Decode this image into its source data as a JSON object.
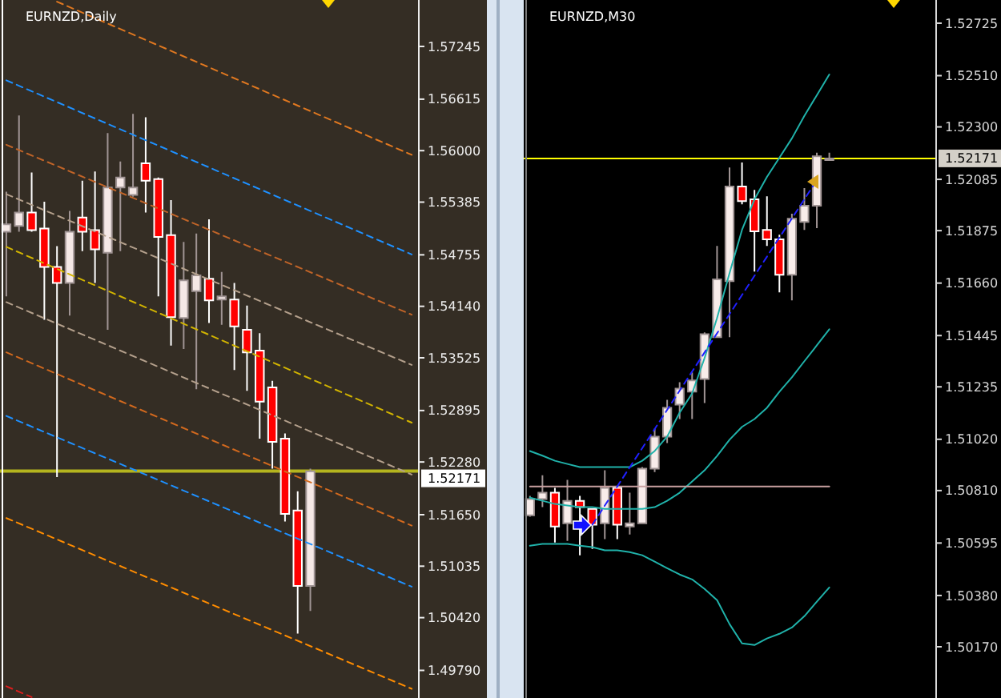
{
  "chart_data": [
    {
      "type": "candlestick",
      "title": "EURNZD,Daily",
      "categories": [
        null,
        null,
        null,
        null,
        null,
        null,
        null,
        null,
        null,
        null,
        null,
        null,
        null,
        null,
        null,
        null,
        null,
        null,
        null,
        null,
        null,
        null,
        null,
        null,
        null,
        null,
        null,
        null,
        null,
        null,
        null,
        null,
        null
      ],
      "ohlc": [
        [
          1.5503,
          1.5551,
          1.5426,
          1.5512
        ],
        [
          1.551,
          1.5642,
          1.5503,
          1.5526
        ],
        [
          1.5526,
          1.5574,
          1.5503,
          1.5505
        ],
        [
          1.5507,
          1.5539,
          1.5398,
          1.5461
        ],
        [
          1.5461,
          1.5486,
          1.521,
          1.5442
        ],
        [
          1.5442,
          1.5528,
          1.5403,
          1.5503
        ],
        [
          1.552,
          1.5564,
          1.548,
          1.5503
        ],
        [
          1.5505,
          1.5575,
          1.5442,
          1.5482
        ],
        [
          1.5478,
          1.5621,
          1.5386,
          1.5556
        ],
        [
          1.5556,
          1.5587,
          1.548,
          1.5568
        ],
        [
          1.5547,
          1.5644,
          1.5545,
          1.5556
        ],
        [
          1.5585,
          1.564,
          1.5526,
          1.5564
        ],
        [
          1.5566,
          1.5568,
          1.5426,
          1.5497
        ],
        [
          1.5499,
          1.5541,
          1.5367,
          1.5401
        ],
        [
          1.54,
          1.5491,
          1.5363,
          1.5445
        ],
        [
          1.5432,
          1.5501,
          1.5315,
          1.5451
        ],
        [
          1.5447,
          1.5518,
          1.5394,
          1.5421
        ],
        [
          1.5422,
          1.5455,
          1.5392,
          1.5426
        ],
        [
          1.5422,
          1.5442,
          1.5338,
          1.539
        ],
        [
          1.5386,
          1.5415,
          1.5313,
          1.5359
        ],
        [
          1.5361,
          1.5382,
          1.5256,
          1.53
        ],
        [
          1.5317,
          1.5325,
          1.522,
          1.5252
        ],
        [
          1.5256,
          1.5262,
          1.5157,
          1.5166
        ],
        [
          1.517,
          1.5193,
          1.5023,
          1.508
        ],
        [
          1.508,
          1.522,
          1.505,
          1.5217
        ],
        null,
        null,
        null,
        null,
        null,
        null,
        null,
        null
      ],
      "colors": [
        "#f5e8e6",
        "#f5e8e6",
        "#ff0000",
        "#ff0000",
        "#ff0000",
        "#f5e8e6",
        "#ff0000",
        "#ff0000",
        "#f5e8e6",
        "#f5e8e6",
        "#f5e8e6",
        "#ff0000",
        "#ff0000",
        "#ff0000",
        "#f5e8e6",
        "#f5e8e6",
        "#ff0000",
        "#f5e8e6",
        "#ff0000",
        "#ff0000",
        "#ff0000",
        "#ff0000",
        "#ff0000",
        "#ff0000",
        "#f5e8e6",
        null,
        null,
        null,
        null,
        null,
        null,
        null,
        null
      ],
      "ylim": [
        1.4946,
        1.578
      ],
      "yticks": [
        1.57245,
        1.56615,
        {
          "value": 1.56,
          "label": "1.56000"
        },
        1.55385,
        1.54755,
        {
          "value": 1.5414,
          "label": "1.54140"
        },
        1.53525,
        1.52895,
        {
          "value": 1.5228,
          "label": "1.52280"
        },
        {
          "value": 1.5165,
          "label": "1.51650"
        },
        1.51035,
        {
          "value": 1.5042,
          "label": "1.50420"
        },
        {
          "value": 1.4979,
          "label": "1.49790"
        }
      ],
      "tick_labels": "y",
      "series": [
        {
          "type": "line",
          "color": "#e07820",
          "line_style": "dashed",
          "values": [
            null,
            null,
            null,
            null,
            1.5778,
            null,
            null,
            null,
            null,
            null,
            null,
            null,
            null,
            null,
            null,
            null,
            null,
            null,
            null,
            null,
            null,
            null,
            null,
            null,
            null,
            null,
            null,
            null,
            null,
            null,
            null,
            null,
            1.5595
          ]
        },
        {
          "type": "line",
          "color": "#1e90ff",
          "line_style": "dashed",
          "values": [
            1.5684,
            null,
            null,
            null,
            null,
            null,
            null,
            null,
            null,
            null,
            null,
            null,
            null,
            null,
            null,
            null,
            null,
            null,
            null,
            null,
            null,
            null,
            null,
            null,
            null,
            null,
            null,
            null,
            null,
            null,
            null,
            null,
            1.5476
          ]
        },
        {
          "type": "line",
          "color": "#c06428",
          "line_style": "dashed",
          "values": [
            1.5607,
            null,
            null,
            null,
            null,
            null,
            null,
            null,
            null,
            null,
            null,
            null,
            null,
            null,
            null,
            null,
            null,
            null,
            null,
            null,
            null,
            null,
            null,
            null,
            null,
            null,
            null,
            null,
            null,
            null,
            null,
            null,
            1.5404
          ]
        },
        {
          "type": "line",
          "color": "#b4a08c",
          "line_style": "dashed",
          "values": [
            1.5548,
            null,
            null,
            null,
            null,
            null,
            null,
            null,
            null,
            null,
            null,
            null,
            null,
            null,
            null,
            null,
            null,
            null,
            null,
            null,
            null,
            null,
            null,
            null,
            null,
            null,
            null,
            null,
            null,
            null,
            null,
            null,
            1.5344
          ]
        },
        {
          "type": "line",
          "color": "#d2b400",
          "line_style": "dashed",
          "values": [
            1.5485,
            null,
            null,
            null,
            null,
            null,
            null,
            null,
            null,
            null,
            null,
            null,
            null,
            null,
            null,
            null,
            null,
            null,
            null,
            null,
            null,
            null,
            null,
            null,
            null,
            null,
            null,
            null,
            null,
            null,
            null,
            null,
            1.5275
          ]
        },
        {
          "type": "line",
          "color": "#b4a08c",
          "line_style": "dashed",
          "values": [
            1.5419,
            null,
            null,
            null,
            null,
            null,
            null,
            null,
            null,
            null,
            null,
            null,
            null,
            null,
            null,
            null,
            null,
            null,
            null,
            null,
            null,
            null,
            null,
            null,
            null,
            null,
            null,
            null,
            null,
            null,
            null,
            null,
            1.5213
          ]
        },
        {
          "type": "line",
          "color": "#d2691e",
          "line_style": "dashed",
          "values": [
            1.5359,
            null,
            null,
            null,
            null,
            null,
            null,
            null,
            null,
            null,
            null,
            null,
            null,
            null,
            null,
            null,
            null,
            null,
            null,
            null,
            null,
            null,
            null,
            null,
            null,
            null,
            null,
            null,
            null,
            null,
            null,
            null,
            1.5152
          ]
        },
        {
          "type": "line",
          "color": "#1e90ff",
          "line_style": "dashed",
          "values": [
            1.5283,
            null,
            null,
            null,
            null,
            null,
            null,
            null,
            null,
            null,
            null,
            null,
            null,
            null,
            null,
            null,
            null,
            null,
            null,
            null,
            null,
            null,
            null,
            null,
            null,
            null,
            null,
            null,
            null,
            null,
            null,
            null,
            1.5079
          ]
        },
        {
          "type": "line",
          "color": "#ff8c00",
          "line_style": "dashed",
          "values": [
            1.5161,
            null,
            null,
            null,
            null,
            null,
            null,
            null,
            null,
            null,
            null,
            null,
            null,
            null,
            null,
            null,
            null,
            null,
            null,
            null,
            null,
            null,
            null,
            null,
            null,
            null,
            null,
            null,
            null,
            null,
            null,
            null,
            1.4957
          ]
        },
        {
          "type": "line",
          "color": "#dc1e1e",
          "line_style": "dashed",
          "values": [
            1.496,
            null,
            1.4947,
            null,
            null,
            null,
            null,
            null,
            null,
            null,
            null,
            null,
            null,
            null,
            null,
            null,
            null,
            null,
            null,
            null,
            null,
            null,
            null,
            null,
            null,
            null,
            null,
            null,
            null,
            null,
            null,
            null,
            null
          ]
        }
      ],
      "ref_lines": [
        {
          "axis": "y",
          "value": 1.52171,
          "label": "1.52171",
          "color": "#b4b41e"
        }
      ]
    },
    {
      "type": "candlestick",
      "title": "EURNZD,M30",
      "categories": [
        null,
        null,
        null,
        null,
        null,
        null,
        null,
        null,
        null,
        null,
        null,
        null,
        null,
        null,
        null,
        null,
        null,
        null,
        null,
        null,
        null,
        null,
        null,
        null,
        null,
        null,
        null,
        null,
        null,
        null,
        null,
        null,
        null
      ],
      "ohlc": [
        [
          1.50709,
          1.50788,
          1.50703,
          1.50775
        ],
        [
          1.50775,
          1.50873,
          1.50742,
          1.50801
        ],
        [
          1.50801,
          1.50821,
          1.50597,
          1.50663
        ],
        [
          1.50676,
          1.50854,
          1.50604,
          1.50768
        ],
        [
          1.50768,
          1.50788,
          1.50545,
          1.50742
        ],
        [
          1.50735,
          1.50735,
          1.50571,
          1.5067
        ],
        [
          1.50676,
          1.50893,
          1.50611,
          1.50821
        ],
        [
          1.50821,
          1.50827,
          1.50611,
          1.5067
        ],
        [
          1.50663,
          1.50801,
          1.5063,
          1.50676
        ],
        [
          1.50676,
          1.50906,
          1.50676,
          1.509
        ],
        [
          1.509,
          1.51064,
          1.50886,
          1.51031
        ],
        [
          1.51031,
          1.51182,
          1.51005,
          1.51149
        ],
        [
          1.51162,
          1.51254,
          1.51103,
          1.51228
        ],
        [
          1.51215,
          1.51294,
          1.51103,
          1.51261
        ],
        [
          1.51267,
          1.51458,
          1.51169,
          1.51451
        ],
        [
          1.51438,
          1.51812,
          1.51438,
          1.51675
        ],
        [
          1.51668,
          1.52134,
          1.51438,
          1.52056
        ],
        [
          1.52056,
          1.52154,
          1.51983,
          1.51996
        ],
        [
          1.52003,
          1.52042,
          1.51707,
          1.51872
        ],
        [
          1.51878,
          1.52016,
          1.51812,
          1.51839
        ],
        [
          1.51839,
          1.51858,
          1.51622,
          1.51694
        ],
        [
          1.51694,
          1.51944,
          1.51589,
          1.51924
        ],
        [
          1.51911,
          1.52049,
          1.51878,
          1.51977
        ],
        [
          1.51977,
          1.52194,
          1.51885,
          1.5218
        ],
        [
          1.52171,
          1.52194,
          1.52171,
          1.52171
        ],
        null,
        null,
        null,
        null,
        null,
        null,
        null,
        null
      ],
      "colors": [
        "#f8ecea",
        "#f8ecea",
        "#ff0000",
        "#f8ecea",
        "#ff0000",
        "#ff0000",
        "#f8ecea",
        "#ff0000",
        "#f8ecea",
        "#f8ecea",
        "#f8ecea",
        "#f8ecea",
        "#f8ecea",
        "#f8ecea",
        "#f8ecea",
        "#f8ecea",
        "#f8ecea",
        "#ff0000",
        "#ff0000",
        "#ff0000",
        "#ff0000",
        "#f8ecea",
        "#f8ecea",
        "#f8ecea",
        "#f8ecea",
        null,
        null,
        null,
        null,
        null,
        null,
        null,
        null
      ],
      "ylim": [
        1.4996,
        1.5282
      ],
      "yticks": [
        1.52725,
        {
          "value": 1.5251,
          "label": "1.52510"
        },
        {
          "value": 1.523,
          "label": "1.52300"
        },
        1.52085,
        1.51875,
        {
          "value": 1.5166,
          "label": "1.51660"
        },
        1.51445,
        1.51235,
        {
          "value": 1.5102,
          "label": "1.51020"
        },
        {
          "value": 1.5081,
          "label": "1.50810"
        },
        1.50595,
        {
          "value": 1.5038,
          "label": "1.50380"
        },
        {
          "value": 1.5017,
          "label": "1.50170"
        }
      ],
      "tick_labels": "y",
      "series": [
        {
          "type": "line",
          "color": "#20b2aa",
          "line_style": "solid",
          "values": [
            1.50972,
            1.50953,
            1.50932,
            1.50919,
            1.50906,
            1.50906,
            1.50906,
            1.50906,
            1.50906,
            1.50932,
            1.50972,
            1.51031,
            1.51129,
            1.51208,
            1.51353,
            1.51517,
            1.51701,
            1.51878,
            1.52003,
            1.52095,
            1.52174,
            1.52253,
            1.52345,
            1.5243,
            1.52515,
            null,
            null,
            null,
            null,
            null,
            null,
            null,
            null
          ]
        },
        {
          "type": "line",
          "color": "#20b2aa",
          "line_style": "solid",
          "values": [
            1.50781,
            1.50768,
            1.50755,
            1.50749,
            1.50742,
            1.50742,
            1.50735,
            1.50735,
            1.50735,
            1.50735,
            1.50742,
            1.50768,
            1.50801,
            1.50847,
            1.50893,
            1.50952,
            1.51018,
            1.51071,
            1.51103,
            1.51149,
            1.51215,
            1.51274,
            1.5134,
            1.51405,
            1.51471,
            null,
            null,
            null,
            null,
            null,
            null,
            null,
            null
          ]
        },
        {
          "type": "line",
          "color": "#20b2aa",
          "line_style": "solid",
          "values": [
            1.50584,
            1.50591,
            1.50591,
            1.50591,
            1.50584,
            1.50578,
            1.50565,
            1.50565,
            1.50558,
            1.50545,
            1.50519,
            1.50492,
            1.50466,
            1.50446,
            1.50407,
            1.50361,
            1.50263,
            1.50184,
            1.50177,
            1.50204,
            1.50223,
            1.50249,
            1.50295,
            1.50355,
            1.50413,
            null,
            null,
            null,
            null,
            null,
            null,
            null,
            null
          ]
        },
        {
          "type": "line",
          "color": "#c8a0a0",
          "line_style": "solid",
          "values": [
            1.50827,
            null,
            null,
            null,
            null,
            null,
            null,
            null,
            null,
            null,
            null,
            null,
            null,
            null,
            null,
            null,
            null,
            null,
            null,
            null,
            null,
            null,
            null,
            null,
            1.50827,
            null,
            null,
            null,
            null,
            null,
            null,
            null,
            null
          ]
        },
        {
          "type": "line",
          "color": "#2020ff",
          "line_style": "dashed",
          "values": [
            null,
            null,
            null,
            null,
            null,
            1.5067,
            null,
            null,
            null,
            null,
            null,
            null,
            null,
            null,
            null,
            null,
            null,
            null,
            null,
            null,
            null,
            null,
            null,
            1.52082,
            null,
            null,
            null,
            null,
            null,
            null,
            null,
            null,
            null
          ]
        }
      ],
      "ref_lines": [
        {
          "axis": "y",
          "value": 1.52171,
          "label": "1.52171",
          "color": "#ffff00"
        }
      ]
    }
  ]
}
